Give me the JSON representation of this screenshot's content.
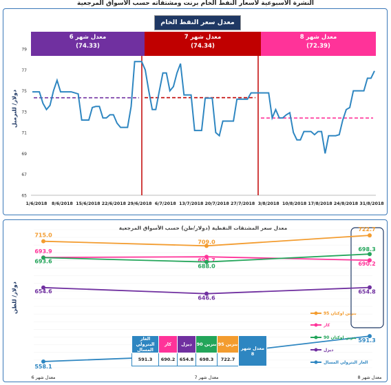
{
  "page_title": "النشرة الأسبوعية لأسعار النفط الخام برنت ومشتقاته حسب الأسواق المرجعية",
  "chart_data": [
    {
      "type": "line",
      "title": "معدل سعر النفط الخام برنت",
      "ylabel": "دولار/ للبرميل",
      "ylim": [
        65,
        79
      ],
      "yticks": [
        65,
        67,
        69,
        71,
        73,
        75,
        77,
        79
      ],
      "xticks": [
        "1/6/2018",
        "8/6/2018",
        "15/6/2018",
        "22/6/2018",
        "29/6/2018",
        "6/7/2018",
        "13/7/2018",
        "20/7/2018",
        "27/7/2018",
        "3/8/2018",
        "10/8/2018",
        "17/8/2018",
        "24/8/2018",
        "31/8/2018"
      ],
      "series": [
        {
          "values": [
            74.9,
            74.9,
            74.9,
            73.8,
            73.2,
            73.6,
            75.0,
            76.0,
            74.9,
            74.9,
            74.9,
            74.9,
            74.8,
            74.7,
            72.2,
            72.2,
            72.2,
            73.4,
            73.5,
            73.5,
            72.4,
            72.4,
            72.7,
            72.7,
            71.9,
            71.5,
            71.5,
            71.5,
            73.5,
            77.8,
            77.8,
            77.8,
            77.0,
            75.0,
            73.2,
            73.2,
            75.0,
            76.7,
            76.7,
            75.0,
            75.4,
            76.7,
            77.6,
            74.6,
            74.6,
            74.6,
            71.2,
            71.2,
            71.2,
            74.3,
            74.3,
            74.3,
            71.0,
            70.7,
            72.1,
            72.1,
            72.1,
            72.1,
            74.2,
            74.2,
            74.2,
            74.2,
            74.8,
            74.8,
            74.8,
            74.8,
            74.8,
            74.8,
            72.4,
            73.2,
            72.4,
            72.4,
            72.7,
            72.9,
            71.0,
            70.3,
            70.3,
            71.1,
            71.1,
            71.1,
            70.8,
            71.1,
            71.1,
            69.0,
            70.7,
            70.7,
            70.7,
            70.8,
            72.2,
            73.2,
            73.4,
            75.0,
            75.0,
            75.0,
            75.0,
            76.2,
            76.2,
            76.9
          ]
        }
      ],
      "averages": [
        {
          "label": "معدل شهر 6",
          "value": "(74.33)",
          "level": 74.33,
          "color": "#7030a0"
        },
        {
          "label": "معدل شهر 7",
          "value": "(74.34)",
          "level": 74.34,
          "color": "#c00000"
        },
        {
          "label": "معدل شهر 8",
          "value": "(72.39)",
          "level": 72.39,
          "color": "#ff3399"
        }
      ]
    },
    {
      "type": "line",
      "title": "معدل سعر المشتقات النفطية (دولار/طن) حسب الأسواق المرجعية",
      "ylabel": "دولار/ للطن",
      "ylim": [
        550,
        730
      ],
      "categories": [
        "معدل شهر 6",
        "معدل شهر 7",
        "معدل شهر 8"
      ],
      "series": [
        {
          "name": "بنزين اوكتان 95",
          "color": "#f39c2f",
          "values": [
            715.0,
            709.0,
            722.7
          ],
          "labels": [
            "715.0",
            "709.0",
            "722.7"
          ]
        },
        {
          "name": "كاز",
          "color": "#ff3399",
          "values": [
            693.9,
            694.7,
            690.2
          ],
          "labels": [
            "693.9",
            "694.7",
            "690.2"
          ]
        },
        {
          "name": "بنزين اوكتان 90",
          "color": "#23a55a",
          "values": [
            693.6,
            688.0,
            698.3
          ],
          "labels": [
            "693.6",
            "688.0",
            "698.3"
          ]
        },
        {
          "name": "ديزل",
          "color": "#7030a0",
          "values": [
            654.6,
            646.6,
            654.8
          ],
          "labels": [
            "654.6",
            "646.6",
            "654.8"
          ]
        },
        {
          "name": "الغاز البترولي المسال",
          "color": "#2e86c1",
          "values": [
            558.1,
            566.3,
            591.3
          ],
          "labels": [
            "558.1",
            "566.3",
            "591.3"
          ]
        }
      ],
      "table": {
        "row_header": "معدل شهر 8",
        "headers": [
          "الغاز البترولي المسال",
          "كاز",
          "ديزل",
          "بنزين 90",
          "بنزين 95"
        ],
        "values": [
          "591.3",
          "690.2",
          "654.8",
          "698.3",
          "722.7"
        ]
      }
    }
  ]
}
